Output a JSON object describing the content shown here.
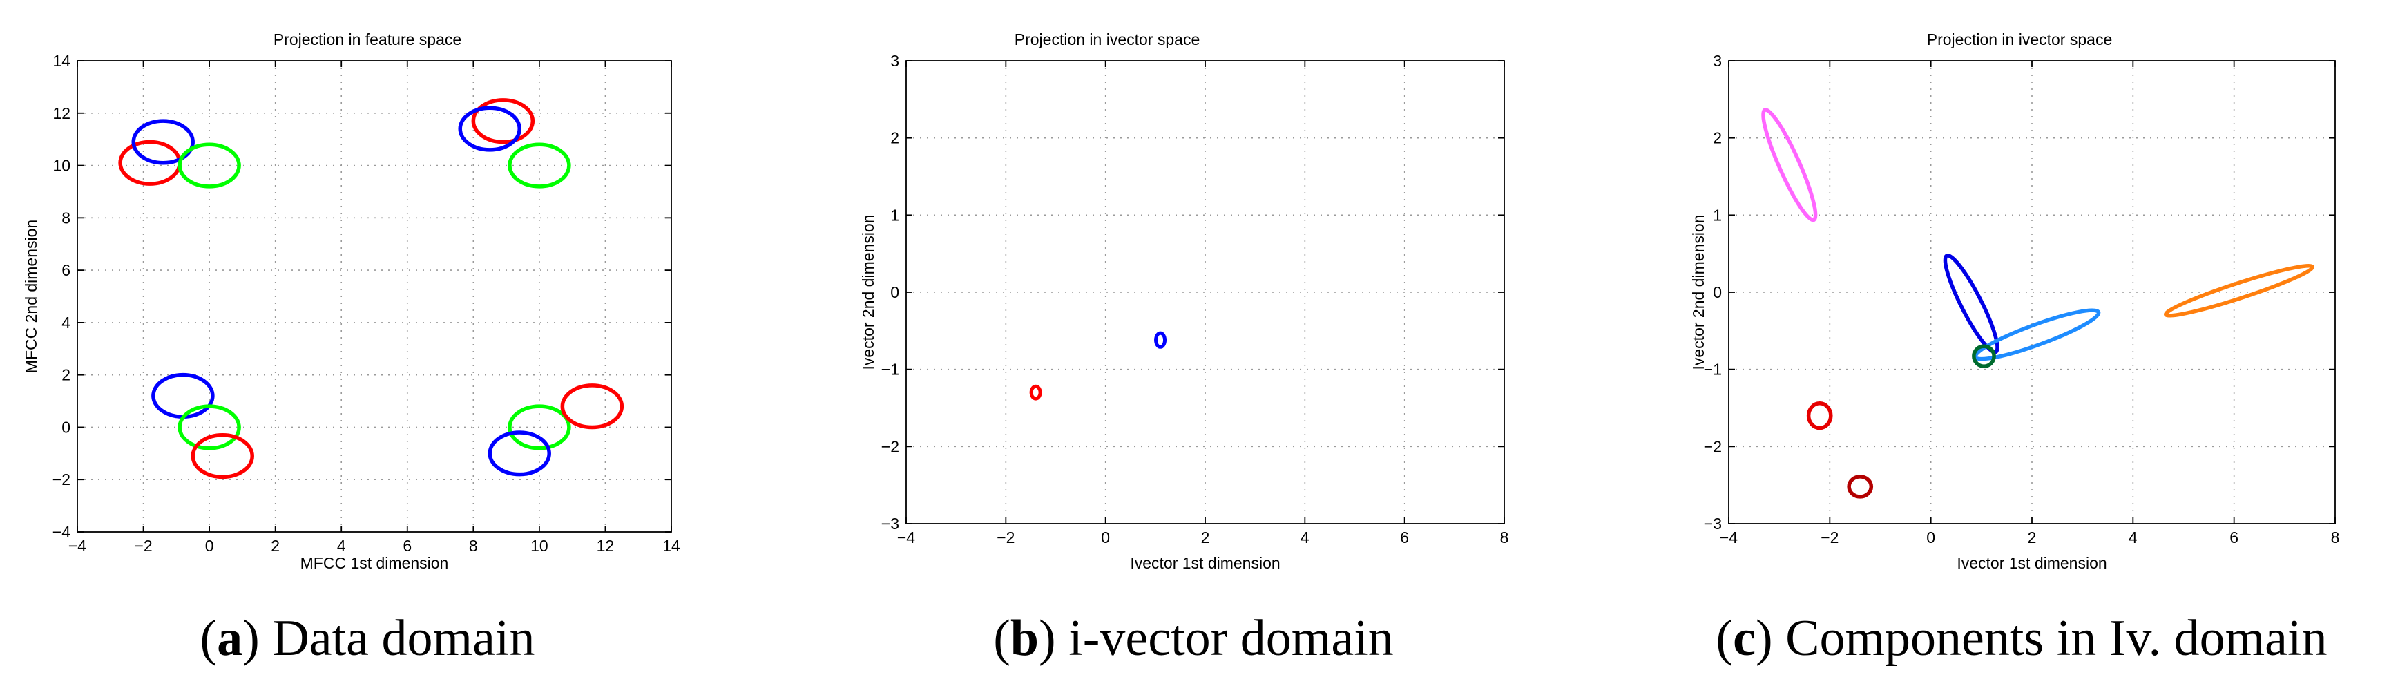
{
  "chart_data": [
    {
      "type": "scatter",
      "title": "Projection in feature space",
      "xlabel": "MFCC 1st dimension",
      "ylabel": "MFCC 2nd dimension",
      "xlim": [
        -4,
        14
      ],
      "ylim": [
        -4,
        14
      ],
      "xticks": [
        "−4",
        "−2",
        "0",
        "2",
        "4",
        "6",
        "8",
        "10",
        "12",
        "14"
      ],
      "yticks": [
        "−4",
        "−2",
        "0",
        "2",
        "4",
        "6",
        "8",
        "10",
        "12",
        "14"
      ],
      "grid": true,
      "caption": {
        "letter": "a",
        "text": "Data domain"
      },
      "ellipses": [
        {
          "color": "#ff0000",
          "cx": -1.8,
          "cy": 10.1,
          "rx": 0.9,
          "ry": 0.8,
          "angle": 0
        },
        {
          "color": "#0000ff",
          "cx": -1.4,
          "cy": 10.9,
          "rx": 0.9,
          "ry": 0.8,
          "angle": 0
        },
        {
          "color": "#00ff00",
          "cx": 0.0,
          "cy": 10.0,
          "rx": 0.9,
          "ry": 0.8,
          "angle": 0
        },
        {
          "color": "#ff0000",
          "cx": 8.9,
          "cy": 11.7,
          "rx": 0.9,
          "ry": 0.8,
          "angle": 0
        },
        {
          "color": "#0000ff",
          "cx": 8.5,
          "cy": 11.4,
          "rx": 0.9,
          "ry": 0.8,
          "angle": 0
        },
        {
          "color": "#00ff00",
          "cx": 10.0,
          "cy": 10.0,
          "rx": 0.9,
          "ry": 0.8,
          "angle": 0
        },
        {
          "color": "#0000ff",
          "cx": -0.8,
          "cy": 1.2,
          "rx": 0.9,
          "ry": 0.8,
          "angle": 0
        },
        {
          "color": "#00ff00",
          "cx": 0.0,
          "cy": 0.0,
          "rx": 0.9,
          "ry": 0.8,
          "angle": 0
        },
        {
          "color": "#ff0000",
          "cx": 0.4,
          "cy": -1.1,
          "rx": 0.9,
          "ry": 0.8,
          "angle": 0
        },
        {
          "color": "#00ff00",
          "cx": 10.0,
          "cy": 0.0,
          "rx": 0.9,
          "ry": 0.8,
          "angle": 0
        },
        {
          "color": "#0000ff",
          "cx": 9.4,
          "cy": -1.0,
          "rx": 0.9,
          "ry": 0.8,
          "angle": 0
        },
        {
          "color": "#ff0000",
          "cx": 11.6,
          "cy": 0.8,
          "rx": 0.9,
          "ry": 0.8,
          "angle": 0
        }
      ]
    },
    {
      "type": "scatter",
      "title": "Projection in ivector space",
      "xlabel": "Ivector 1st dimension",
      "ylabel": "Ivector 2nd dimension",
      "xlim": [
        -4,
        8
      ],
      "ylim": [
        -3,
        3
      ],
      "xticks": [
        "−4",
        "−2",
        "0",
        "2",
        "4",
        "6",
        "8"
      ],
      "yticks": [
        "−3",
        "−2",
        "−1",
        "0",
        "1",
        "2",
        "3"
      ],
      "grid": true,
      "caption": {
        "letter": "b",
        "text": "i-vector domain"
      },
      "ellipses": [
        {
          "color": "#ff0000",
          "cx": -1.4,
          "cy": -1.3,
          "rx": 0.09,
          "ry": 0.08,
          "angle": 0
        },
        {
          "color": "#0000ff",
          "cx": 1.1,
          "cy": -0.62,
          "rx": 0.09,
          "ry": 0.09,
          "angle": 0
        }
      ]
    },
    {
      "type": "scatter",
      "title": "Projection in ivector space",
      "xlabel": "Ivector 1st dimension",
      "ylabel": "Ivector 2nd dimension",
      "xlim": [
        -4,
        8
      ],
      "ylim": [
        -3,
        3
      ],
      "xticks": [
        "−4",
        "−2",
        "0",
        "2",
        "4",
        "6",
        "8"
      ],
      "yticks": [
        "−3",
        "−2",
        "−1",
        "0",
        "1",
        "2",
        "3"
      ],
      "grid": true,
      "caption": {
        "letter": "c",
        "text": "Components in Iv. domain"
      },
      "ellipses": [
        {
          "color": "#ff66ff",
          "cx": -2.8,
          "cy": 1.65,
          "rx": 0.2,
          "ry": 0.78,
          "angle": -24
        },
        {
          "color": "#0000e6",
          "cx": 0.8,
          "cy": -0.15,
          "rx": 0.2,
          "ry": 0.7,
          "angle": -27
        },
        {
          "color": "#1e8cff",
          "cx": 2.1,
          "cy": -0.55,
          "rx": 0.2,
          "ry": 0.85,
          "angle": 70
        },
        {
          "color": "#ff7f0e",
          "cx": 6.1,
          "cy": 0.02,
          "rx": 0.15,
          "ry": 1.0,
          "angle": 72
        },
        {
          "color": "#006b2e",
          "cx": 1.05,
          "cy": -0.83,
          "rx": 0.2,
          "ry": 0.13,
          "angle": 0
        },
        {
          "color": "#e60000",
          "cx": -2.2,
          "cy": -1.6,
          "rx": 0.22,
          "ry": 0.16,
          "angle": 0
        },
        {
          "color": "#b30000",
          "cx": -1.4,
          "cy": -2.52,
          "rx": 0.22,
          "ry": 0.13,
          "angle": 0
        }
      ]
    }
  ]
}
